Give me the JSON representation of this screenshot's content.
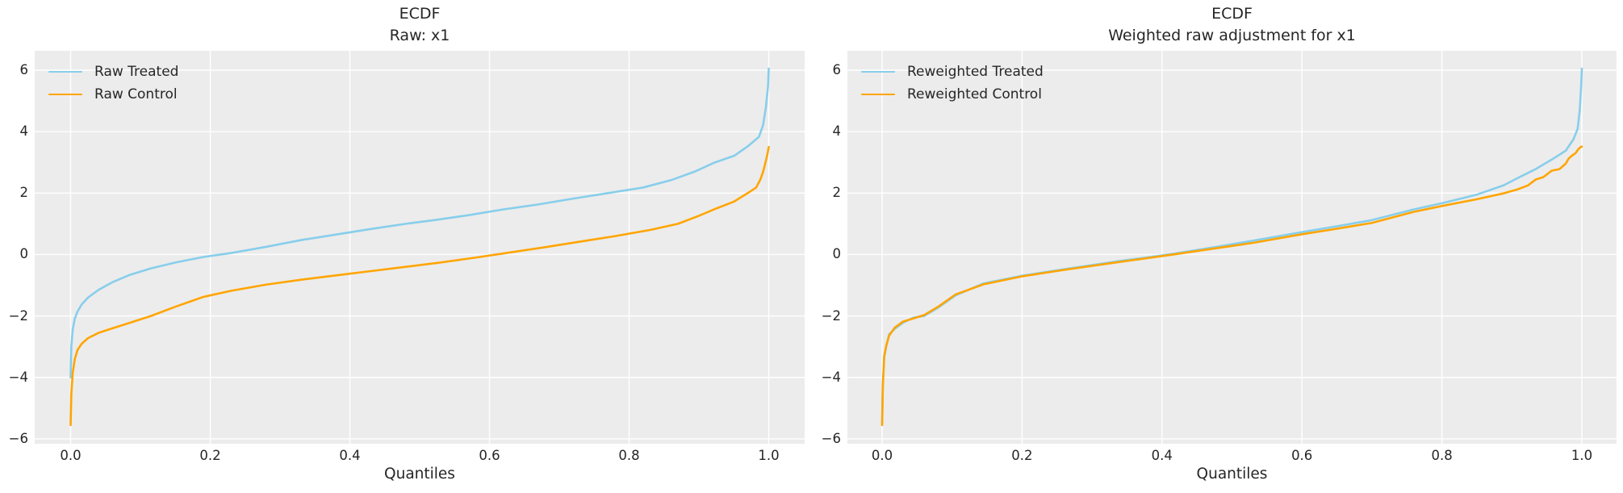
{
  "style": {
    "figure_bg": "#ffffff",
    "panel_bg": "#ececec",
    "grid_color": "#ffffff",
    "text_color": "#262626",
    "treated_color": "#87CEEB",
    "control_color": "#FFA500"
  },
  "chart_data": [
    {
      "type": "line",
      "title": "ECDF",
      "subtitle": "Raw: x1",
      "xlabel": "Quantiles",
      "x_range": [
        0.0,
        1.0
      ],
      "y_range": [
        -6,
        6
      ],
      "grid": true,
      "legend_position": "upper-left",
      "x_ticks": {
        "values": [
          0.0,
          0.2,
          0.4,
          0.6,
          0.8,
          1.0
        ],
        "labels": [
          "0.0",
          "0.2",
          "0.4",
          "0.6",
          "0.8",
          "1.0"
        ]
      },
      "y_ticks": {
        "values": [
          6,
          4,
          2,
          0,
          -2,
          -4,
          -6
        ],
        "labels": [
          "6",
          "4",
          "2",
          "0",
          "−2",
          "−4",
          "−6"
        ]
      },
      "series": [
        {
          "name": "Raw Treated",
          "color": "#87CEEB",
          "x": [
            0.0,
            0.001,
            0.003,
            0.006,
            0.01,
            0.016,
            0.025,
            0.04,
            0.06,
            0.085,
            0.115,
            0.15,
            0.19,
            0.23,
            0.28,
            0.33,
            0.38,
            0.43,
            0.48,
            0.524,
            0.57,
            0.62,
            0.67,
            0.72,
            0.77,
            0.82,
            0.86,
            0.894,
            0.922,
            0.951,
            0.971,
            0.986,
            0.992,
            0.996,
            0.999,
            1.0
          ],
          "y": [
            -4.0,
            -3.0,
            -2.45,
            -2.08,
            -1.85,
            -1.62,
            -1.4,
            -1.15,
            -0.9,
            -0.66,
            -0.45,
            -0.26,
            -0.08,
            0.05,
            0.25,
            0.47,
            0.65,
            0.83,
            1.0,
            1.13,
            1.28,
            1.47,
            1.63,
            1.82,
            2.0,
            2.18,
            2.42,
            2.7,
            2.99,
            3.22,
            3.54,
            3.83,
            4.22,
            4.8,
            5.48,
            6.05
          ]
        },
        {
          "name": "Raw Control",
          "color": "#FFA500",
          "x": [
            0.0,
            0.001,
            0.003,
            0.006,
            0.01,
            0.016,
            0.025,
            0.04,
            0.06,
            0.085,
            0.115,
            0.15,
            0.19,
            0.23,
            0.28,
            0.33,
            0.38,
            0.43,
            0.48,
            0.53,
            0.58,
            0.63,
            0.68,
            0.73,
            0.78,
            0.83,
            0.87,
            0.9,
            0.925,
            0.95,
            0.97,
            0.982,
            0.988,
            0.992,
            0.995,
            0.998,
            1.0
          ],
          "y": [
            -5.55,
            -4.55,
            -3.85,
            -3.4,
            -3.1,
            -2.9,
            -2.72,
            -2.55,
            -2.4,
            -2.22,
            -2.0,
            -1.7,
            -1.38,
            -1.18,
            -0.98,
            -0.82,
            -0.68,
            -0.54,
            -0.4,
            -0.26,
            -0.1,
            0.07,
            0.24,
            0.42,
            0.6,
            0.8,
            1.0,
            1.26,
            1.5,
            1.72,
            2.0,
            2.18,
            2.44,
            2.7,
            2.96,
            3.25,
            3.5
          ]
        }
      ]
    },
    {
      "type": "line",
      "title": "ECDF",
      "subtitle": "Weighted raw adjustment for x1",
      "xlabel": "Quantiles",
      "x_range": [
        0.0,
        1.0
      ],
      "y_range": [
        -6,
        6
      ],
      "grid": true,
      "legend_position": "upper-left",
      "x_ticks": {
        "values": [
          0.0,
          0.2,
          0.4,
          0.6,
          0.8,
          1.0
        ],
        "labels": [
          "0.0",
          "0.2",
          "0.4",
          "0.6",
          "0.8",
          "1.0"
        ]
      },
      "y_ticks": {
        "values": [
          6,
          4,
          2,
          0,
          -2,
          -4,
          -6
        ],
        "labels": [
          "6",
          "4",
          "2",
          "0",
          "−2",
          "−4",
          "−6"
        ]
      },
      "series": [
        {
          "name": "Reweighted Treated",
          "color": "#87CEEB",
          "x": [
            0.0,
            0.001,
            0.003,
            0.006,
            0.01,
            0.018,
            0.03,
            0.045,
            0.06,
            0.08,
            0.105,
            0.145,
            0.2,
            0.26,
            0.34,
            0.41,
            0.47,
            0.53,
            0.6,
            0.65,
            0.7,
            0.76,
            0.8,
            0.85,
            0.888,
            0.911,
            0.934,
            0.957,
            0.977,
            0.988,
            0.994,
            0.997,
            0.999,
            1.0
          ],
          "y": [
            -5.5,
            -4.25,
            -3.35,
            -2.98,
            -2.6,
            -2.42,
            -2.22,
            -2.05,
            -2.0,
            -1.73,
            -1.33,
            -0.94,
            -0.69,
            -0.48,
            -0.21,
            0.0,
            0.22,
            0.45,
            0.73,
            0.92,
            1.12,
            1.47,
            1.67,
            1.95,
            2.25,
            2.52,
            2.78,
            3.09,
            3.38,
            3.75,
            4.09,
            4.69,
            5.48,
            6.05
          ]
        },
        {
          "name": "Reweighted Control",
          "color": "#FFA500",
          "x": [
            0.0,
            0.001,
            0.003,
            0.006,
            0.01,
            0.018,
            0.03,
            0.045,
            0.06,
            0.08,
            0.105,
            0.145,
            0.2,
            0.26,
            0.34,
            0.41,
            0.47,
            0.53,
            0.6,
            0.65,
            0.7,
            0.76,
            0.8,
            0.85,
            0.888,
            0.908,
            0.923,
            0.934,
            0.945,
            0.957,
            0.968,
            0.977,
            0.981,
            0.986,
            0.991,
            0.995,
            0.999,
            1.0
          ],
          "y": [
            -5.55,
            -4.3,
            -3.3,
            -2.95,
            -2.64,
            -2.38,
            -2.18,
            -2.08,
            -1.97,
            -1.7,
            -1.3,
            -0.97,
            -0.71,
            -0.5,
            -0.24,
            -0.02,
            0.18,
            0.38,
            0.66,
            0.84,
            1.03,
            1.39,
            1.58,
            1.8,
            1.99,
            2.12,
            2.25,
            2.44,
            2.52,
            2.73,
            2.78,
            2.96,
            3.12,
            3.22,
            3.3,
            3.43,
            3.51,
            3.51
          ]
        }
      ]
    }
  ]
}
